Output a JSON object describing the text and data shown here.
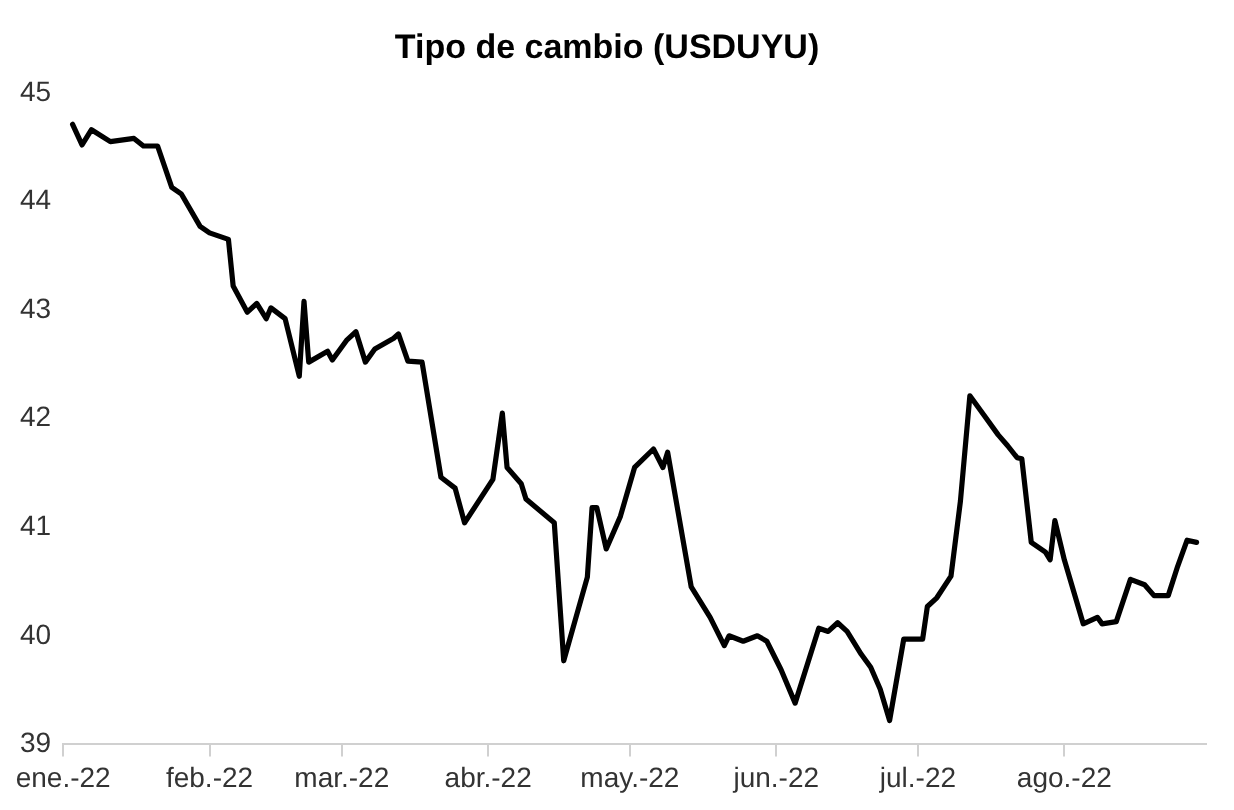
{
  "chart_data": {
    "type": "line",
    "title": "Tipo de cambio (USDUYU)",
    "x": [
      "2022-01-03",
      "2022-01-05",
      "2022-01-07",
      "2022-01-11",
      "2022-01-16",
      "2022-01-18",
      "2022-01-21",
      "2022-01-24",
      "2022-01-26",
      "2022-01-30",
      "2022-02-01",
      "2022-02-05",
      "2022-02-06",
      "2022-02-09",
      "2022-02-11",
      "2022-02-13",
      "2022-02-14",
      "2022-02-17",
      "2022-02-20",
      "2022-02-21",
      "2022-02-22",
      "2022-02-26",
      "2022-02-27",
      "2022-03-02",
      "2022-03-04",
      "2022-03-06",
      "2022-03-08",
      "2022-03-12",
      "2022-03-13",
      "2022-03-15",
      "2022-03-18",
      "2022-03-22",
      "2022-03-25",
      "2022-03-27",
      "2022-04-02",
      "2022-04-04",
      "2022-04-05",
      "2022-04-08",
      "2022-04-09",
      "2022-04-15",
      "2022-04-17",
      "2022-04-22",
      "2022-04-23",
      "2022-04-24",
      "2022-04-26",
      "2022-04-29",
      "2022-05-02",
      "2022-05-06",
      "2022-05-08",
      "2022-05-09",
      "2022-05-14",
      "2022-05-18",
      "2022-05-21",
      "2022-05-22",
      "2022-05-25",
      "2022-05-28",
      "2022-05-30",
      "2022-06-02",
      "2022-06-05",
      "2022-06-10",
      "2022-06-12",
      "2022-06-14",
      "2022-06-16",
      "2022-06-19",
      "2022-06-21",
      "2022-06-23",
      "2022-06-25",
      "2022-06-28",
      "2022-07-02",
      "2022-07-03",
      "2022-07-05",
      "2022-07-08",
      "2022-07-10",
      "2022-07-12",
      "2022-07-15",
      "2022-07-18",
      "2022-07-20",
      "2022-07-22",
      "2022-07-23",
      "2022-07-25",
      "2022-07-28",
      "2022-07-29",
      "2022-07-30",
      "2022-08-01",
      "2022-08-05",
      "2022-08-08",
      "2022-08-09",
      "2022-08-12",
      "2022-08-15",
      "2022-08-18",
      "2022-08-20",
      "2022-08-23",
      "2022-08-25",
      "2022-08-27",
      "2022-08-29"
    ],
    "values": [
      44.71,
      44.52,
      44.66,
      44.55,
      44.58,
      44.51,
      44.51,
      44.13,
      44.07,
      43.77,
      43.71,
      43.65,
      43.22,
      42.98,
      43.06,
      42.92,
      43.02,
      42.92,
      42.39,
      43.08,
      42.52,
      42.62,
      42.54,
      42.72,
      42.8,
      42.52,
      42.64,
      42.74,
      42.78,
      42.53,
      42.52,
      41.46,
      41.36,
      41.04,
      41.44,
      42.05,
      41.55,
      41.4,
      41.26,
      41.04,
      39.77,
      40.54,
      41.18,
      41.18,
      40.8,
      41.1,
      41.55,
      41.72,
      41.55,
      41.69,
      40.45,
      40.17,
      39.91,
      40.0,
      39.95,
      40.0,
      39.95,
      39.69,
      39.38,
      40.07,
      40.04,
      40.12,
      40.04,
      39.83,
      39.71,
      39.51,
      39.22,
      39.97,
      39.97,
      40.27,
      40.35,
      40.55,
      41.24,
      42.21,
      42.03,
      41.85,
      41.75,
      41.64,
      41.63,
      40.86,
      40.77,
      40.7,
      41.06,
      40.7,
      40.11,
      40.17,
      40.11,
      40.13,
      40.52,
      40.47,
      40.37,
      40.37,
      40.64,
      40.88,
      40.86
    ],
    "color": "#000000",
    "xlim": [
      "2022-01-01",
      "2022-08-31"
    ],
    "xticks": [
      {
        "value": "2022-01-01",
        "label": "ene.-22"
      },
      {
        "value": "2022-02-01",
        "label": "feb.-22"
      },
      {
        "value": "2022-03-01",
        "label": "mar.-22"
      },
      {
        "value": "2022-04-01",
        "label": "abr.-22"
      },
      {
        "value": "2022-05-01",
        "label": "may.-22"
      },
      {
        "value": "2022-06-01",
        "label": "jun.-22"
      },
      {
        "value": "2022-07-01",
        "label": "jul.-22"
      },
      {
        "value": "2022-08-01",
        "label": "ago.-22"
      }
    ],
    "ylim": [
      39,
      45
    ],
    "yticks": [
      39,
      40,
      41,
      42,
      43,
      44,
      45
    ],
    "grid": false,
    "legend": false,
    "marker": "none",
    "line_style": "solid"
  }
}
